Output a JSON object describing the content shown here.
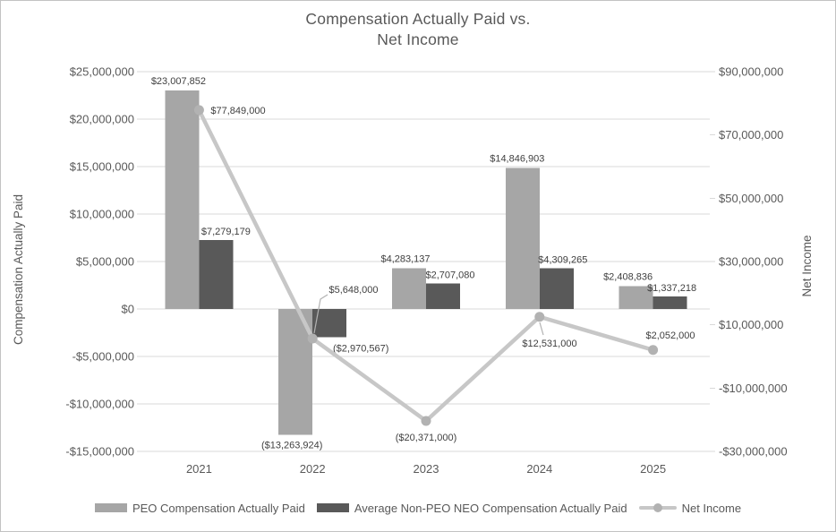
{
  "title": {
    "line1": "Compensation Actually Paid  vs.",
    "line2": "Net Income"
  },
  "chart_data": {
    "type": "combo-bar-line",
    "categories": [
      "2021",
      "2022",
      "2023",
      "2024",
      "2025"
    ],
    "series": [
      {
        "name": "PEO Compensation Actually Paid",
        "type": "bar",
        "axis": "left",
        "color": "#a6a6a6",
        "values": [
          23007852,
          -13263924,
          4283137,
          14846903,
          2408836
        ],
        "labels": [
          "$23,007,852",
          "($13,263,924)",
          "$4,283,137",
          "$14,846,903",
          "$2,408,836"
        ]
      },
      {
        "name": "Average Non-PEO NEO Compensation Actually Paid",
        "type": "bar",
        "axis": "left",
        "color": "#595959",
        "values": [
          7279179,
          -2970567,
          2707080,
          4309265,
          1337218
        ],
        "labels": [
          "$7,279,179",
          "($2,970,567)",
          "$2,707,080",
          "$4,309,265",
          "$1,337,218"
        ]
      },
      {
        "name": "Net Income",
        "type": "line",
        "axis": "right",
        "color": "#c7c7c7",
        "marker_color": "#b2b2b2",
        "values": [
          77849000,
          5648000,
          -20371000,
          12531000,
          2052000
        ],
        "labels": [
          "$77,849,000",
          "$5,648,000",
          "($20,371,000)",
          "$12,531,000",
          "$2,052,000"
        ]
      }
    ],
    "left_axis": {
      "title": "Compensation Actually Paid",
      "min": -15000000,
      "max": 25000000,
      "step": 5000000,
      "ticks": [
        "$25,000,000",
        "$20,000,000",
        "$15,000,000",
        "$10,000,000",
        "$5,000,000",
        "$0",
        "-$5,000,000",
        "-$10,000,000",
        "-$15,000,000"
      ]
    },
    "right_axis": {
      "title": "Net Income",
      "min": -30000000,
      "max": 90000000,
      "step": 20000000,
      "ticks": [
        "$90,000,000",
        "$70,000,000",
        "$50,000,000",
        "$30,000,000",
        "$10,000,000",
        "-$10,000,000",
        "-$30,000,000"
      ]
    },
    "grid": true,
    "legend_position": "bottom"
  },
  "colors": {
    "gridline": "#d9d9d9",
    "axis_text": "#595959",
    "data_label_text": "#3f3f3f",
    "title_text": "#595959",
    "frame_border": "#c3c3c3",
    "background": "#ffffff"
  }
}
